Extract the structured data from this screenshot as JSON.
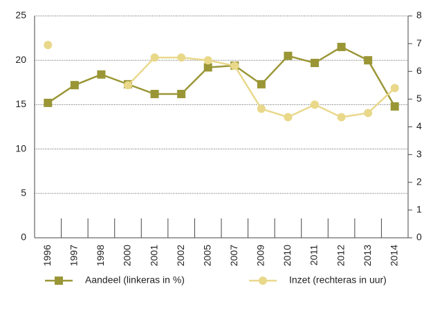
{
  "chart_data": {
    "type": "line",
    "categories": [
      "1996",
      "1997",
      "1998",
      "2000",
      "2001",
      "2002",
      "2005",
      "2007",
      "2009",
      "2010",
      "2011",
      "2012",
      "2013",
      "2014"
    ],
    "series": [
      {
        "name": "Aandeel (linkeras in %)",
        "color": "#9a9636",
        "marker": "square",
        "values": [
          15.2,
          17.2,
          18.4,
          17.3,
          16.2,
          16.2,
          19.2,
          19.4,
          17.3,
          20.5,
          19.7,
          21.5,
          20.0,
          14.8
        ]
      },
      {
        "name": "Inzet (rechteras in uur)",
        "color": "#e9d88a",
        "marker": "circle",
        "axis": "y2",
        "values": [
          6.95,
          null,
          null,
          5.5,
          6.5,
          6.5,
          6.4,
          6.2,
          4.65,
          4.35,
          4.8,
          4.35,
          4.5,
          5.4
        ]
      }
    ],
    "ylim": [
      0,
      25
    ],
    "yticks": [
      0,
      5,
      10,
      15,
      20,
      25
    ],
    "y2lim": [
      0,
      8
    ],
    "y2ticks": [
      0,
      1,
      2,
      3,
      4,
      5,
      6,
      7,
      8
    ],
    "grid": true,
    "legend": "bottom"
  }
}
